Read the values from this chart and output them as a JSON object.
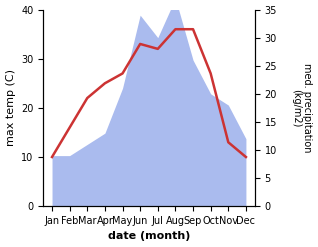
{
  "months": [
    "Jan",
    "Feb",
    "Mar",
    "Apr",
    "May",
    "Jun",
    "Jul",
    "Aug",
    "Sep",
    "Oct",
    "Nov",
    "Dec"
  ],
  "temperature": [
    10,
    16,
    22,
    25,
    27,
    33,
    32,
    36,
    36,
    27,
    13,
    10
  ],
  "precipitation": [
    9,
    9,
    11,
    13,
    21,
    34,
    30,
    37,
    26,
    20,
    18,
    12
  ],
  "temp_color": "#cc3333",
  "precip_color": "#aabbee",
  "xlabel": "date (month)",
  "ylabel_left": "max temp (C)",
  "ylabel_right": "med. precipitation\n(kg/m2)",
  "ylim_left": [
    0,
    40
  ],
  "ylim_right": [
    0,
    35
  ],
  "yticks_left": [
    0,
    10,
    20,
    30,
    40
  ],
  "yticks_right": [
    0,
    5,
    10,
    15,
    20,
    25,
    30,
    35
  ],
  "bg_color": "#ffffff",
  "line_width": 1.8
}
